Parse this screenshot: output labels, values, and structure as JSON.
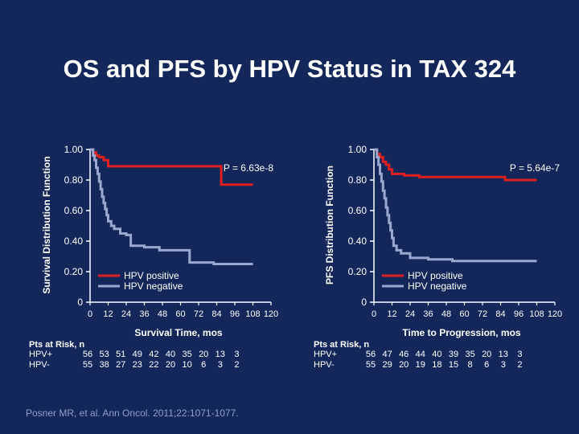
{
  "title": "OS and PFS by HPV Status in TAX 324",
  "citation": "Posner MR, et al. Ann Oncol. 2011;22:1071-1077.",
  "colors": {
    "background": "#13275a",
    "positive": "#e02020",
    "negative": "#9aa8d0",
    "axis": "#ffffff"
  },
  "chart_data": [
    {
      "type": "line",
      "name": "os",
      "ylabel": "Survival Distribution Function",
      "xlabel": "Survival Time, mos",
      "p_value": "P = 6.63e-8",
      "ylim": [
        0,
        1
      ],
      "xlim": [
        0,
        120
      ],
      "y_ticks": [
        0,
        0.2,
        0.4,
        0.6,
        0.8,
        1.0
      ],
      "y_tick_labels": [
        "0",
        "0.20",
        "0.40",
        "0.60",
        "0.80",
        "1.00"
      ],
      "x_ticks": [
        0,
        12,
        24,
        36,
        48,
        60,
        72,
        84,
        96,
        108,
        120
      ],
      "x_tick_labels": [
        "0",
        "12",
        "24",
        "36",
        "48",
        "60",
        "72",
        "84",
        "96",
        "108",
        "120"
      ],
      "legend": [
        "HPV positive",
        "HPV negative"
      ],
      "series": [
        {
          "name": "HPV positive",
          "x": [
            0,
            2,
            4,
            6,
            9,
            12,
            55,
            87,
            108
          ],
          "y": [
            1.0,
            0.98,
            0.96,
            0.95,
            0.93,
            0.89,
            0.89,
            0.77,
            0.77
          ]
        },
        {
          "name": "HPV negative",
          "x": [
            0,
            2,
            3,
            4,
            5,
            6,
            7,
            8,
            9,
            10,
            11,
            12,
            14,
            16,
            20,
            24,
            27,
            36,
            46,
            66,
            82,
            108
          ],
          "y": [
            1.0,
            0.96,
            0.93,
            0.88,
            0.84,
            0.79,
            0.74,
            0.69,
            0.65,
            0.61,
            0.57,
            0.53,
            0.5,
            0.48,
            0.45,
            0.44,
            0.37,
            0.36,
            0.34,
            0.26,
            0.25,
            0.25
          ]
        }
      ],
      "risk": {
        "header": "Pts at Risk, n",
        "rows": [
          {
            "label": "HPV+",
            "values": [
              "56",
              "53",
              "51",
              "49",
              "42",
              "40",
              "35",
              "20",
              "13",
              "3"
            ]
          },
          {
            "label": "HPV-",
            "values": [
              "55",
              "38",
              "27",
              "23",
              "22",
              "20",
              "10",
              "6",
              "3",
              "2"
            ]
          }
        ]
      }
    },
    {
      "type": "line",
      "name": "pfs",
      "ylabel": "PFS Distribution Function",
      "xlabel": "Time to Progression, mos",
      "p_value": "P = 5.64e-7",
      "ylim": [
        0,
        1
      ],
      "xlim": [
        0,
        120
      ],
      "y_ticks": [
        0,
        0.2,
        0.4,
        0.6,
        0.8,
        1.0
      ],
      "y_tick_labels": [
        "0",
        "0.20",
        "0.40",
        "0.60",
        "0.80",
        "1.00"
      ],
      "x_ticks": [
        0,
        12,
        24,
        36,
        48,
        60,
        72,
        84,
        96,
        108,
        120
      ],
      "x_tick_labels": [
        "0",
        "12",
        "24",
        "36",
        "48",
        "60",
        "72",
        "84",
        "96",
        "108",
        "120"
      ],
      "legend": [
        "HPV positive",
        "HPV negative"
      ],
      "series": [
        {
          "name": "HPV positive",
          "x": [
            0,
            2,
            4,
            6,
            8,
            10,
            12,
            20,
            30,
            87,
            108
          ],
          "y": [
            1.0,
            0.97,
            0.95,
            0.92,
            0.9,
            0.87,
            0.84,
            0.83,
            0.82,
            0.8,
            0.8
          ]
        },
        {
          "name": "HPV negative",
          "x": [
            0,
            2,
            3,
            4,
            5,
            6,
            7,
            8,
            9,
            10,
            11,
            12,
            13,
            15,
            18,
            24,
            36,
            52,
            108
          ],
          "y": [
            1.0,
            0.95,
            0.9,
            0.84,
            0.79,
            0.73,
            0.68,
            0.62,
            0.57,
            0.52,
            0.47,
            0.42,
            0.37,
            0.34,
            0.32,
            0.29,
            0.28,
            0.27,
            0.27
          ]
        }
      ],
      "risk": {
        "header": "Pts at Risk, n",
        "rows": [
          {
            "label": "HPV+",
            "values": [
              "56",
              "47",
              "46",
              "44",
              "40",
              "39",
              "35",
              "20",
              "13",
              "3"
            ]
          },
          {
            "label": "HPV-",
            "values": [
              "55",
              "29",
              "20",
              "19",
              "18",
              "15",
              "8",
              "6",
              "3",
              "2"
            ]
          }
        ]
      }
    }
  ]
}
